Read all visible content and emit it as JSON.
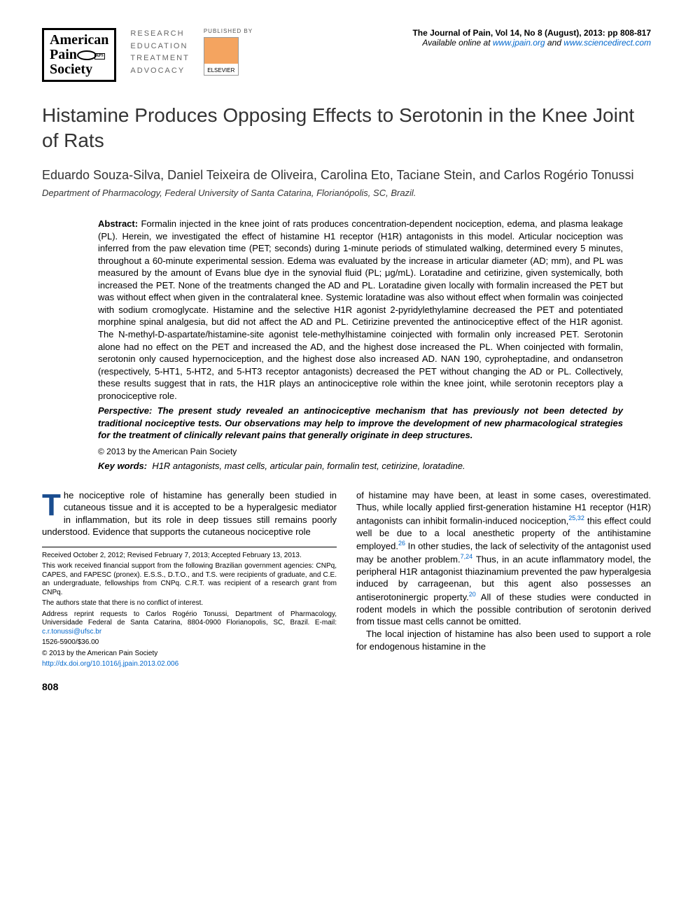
{
  "header": {
    "society_logo": {
      "line1": "American",
      "line2": "Pain",
      "line3": "Society"
    },
    "tagline": [
      "RESEARCH",
      "EDUCATION",
      "TREATMENT",
      "ADVOCACY"
    ],
    "publisher_label": "PUBLISHED BY",
    "publisher_name": "ELSEVIER",
    "journal_citation": "The Journal of Pain, Vol 14, No 8 (August), 2013: pp 808-817",
    "availability_prefix": "Available online at ",
    "link1": "www.jpain.org",
    "availability_mid": " and ",
    "link2": "www.sciencedirect.com"
  },
  "article": {
    "title": "Histamine Produces Opposing Effects to Serotonin in the Knee Joint of Rats",
    "authors": "Eduardo Souza-Silva, Daniel Teixeira de Oliveira, Carolina Eto, Taciane Stein, and Carlos Rogério Tonussi",
    "affiliation": "Department of Pharmacology, Federal University of Santa Catarina, Florianópolis, SC, Brazil."
  },
  "abstract": {
    "label": "Abstract:",
    "text": "Formalin injected in the knee joint of rats produces concentration-dependent nociception, edema, and plasma leakage (PL). Herein, we investigated the effect of histamine H1 receptor (H1R) antagonists in this model. Articular nociception was inferred from the paw elevation time (PET; seconds) during 1-minute periods of stimulated walking, determined every 5 minutes, throughout a 60-minute experimental session. Edema was evaluated by the increase in articular diameter (AD; mm), and PL was measured by the amount of Evans blue dye in the synovial fluid (PL; μg/mL). Loratadine and cetirizine, given systemically, both increased the PET. None of the treatments changed the AD and PL. Loratadine given locally with formalin increased the PET but was without effect when given in the contralateral knee. Systemic loratadine was also without effect when formalin was coinjected with sodium cromoglycate. Histamine and the selective H1R agonist 2-pyridylethylamine decreased the PET and potentiated morphine spinal analgesia, but did not affect the AD and PL. Cetirizine prevented the antinociceptive effect of the H1R agonist. The N-methyl-D-aspartate/histamine-site agonist tele-methylhistamine coinjected with formalin only increased PET. Serotonin alone had no effect on the PET and increased the AD, and the highest dose increased the PL. When coinjected with formalin, serotonin only caused hypernociception, and the highest dose also increased AD. NAN 190, cyproheptadine, and ondansetron (respectively, 5-HT1, 5-HT2, and 5-HT3 receptor antagonists) decreased the PET without changing the AD or PL. Collectively, these results suggest that in rats, the H1R plays an antinociceptive role within the knee joint, while serotonin receptors play a pronociceptive role.",
    "perspective_label": "Perspective:",
    "perspective_text": "The present study revealed an antinociceptive mechanism that has previously not been detected by traditional nociceptive tests. Our observations may help to improve the development of new pharmacological strategies for the treatment of clinically relevant pains that generally originate in deep structures.",
    "copyright": "© 2013 by the American Pain Society",
    "keywords_label": "Key words:",
    "keywords": "H1R antagonists, mast cells, articular pain, formalin test, cetirizine, loratadine."
  },
  "body": {
    "col1_dropcap": "T",
    "col1_p1": "he nociceptive role of histamine has generally been studied in cutaneous tissue and it is accepted to be a hyperalgesic mediator in inflammation, but its role in deep tissues still remains poorly understood. Evidence that supports the cutaneous nociceptive role",
    "col2_p1": "of histamine may have been, at least in some cases, overestimated. Thus, while locally applied first-generation histamine H1 receptor (H1R) antagonists can inhibit formalin-induced nociception,",
    "col2_ref1": "25,32",
    "col2_p1b": " this effect could well be due to a local anesthetic property of the antihistamine employed.",
    "col2_ref2": "26",
    "col2_p1c": " In other studies, the lack of selectivity of the antagonist used may be another problem.",
    "col2_ref3": "7,24",
    "col2_p1d": " Thus, in an acute inflammatory model, the peripheral H1R antagonist thiazinamium prevented the paw hyperalgesia induced by carrageenan, but this agent also possesses an antiserotoninergic property.",
    "col2_ref4": "20",
    "col2_p1e": " All of these studies were conducted in rodent models in which the possible contribution of serotonin derived from tissue mast cells cannot be omitted.",
    "col2_p2": "The local injection of histamine has also been used to support a role for endogenous histamine in the"
  },
  "footnotes": {
    "received": "Received October 2, 2012; Revised February 7, 2013; Accepted February 13, 2013.",
    "funding": "This work received financial support from the following Brazilian government agencies: CNPq, CAPES, and FAPESC (pronex). E.S.S., D.T.O., and T.S. were recipients of graduate, and C.E. an undergraduate, fellowships from CNPq. C.R.T. was recipient of a research grant from CNPq.",
    "conflict": "The authors state that there is no conflict of interest.",
    "reprint": "Address reprint requests to Carlos Rogério Tonussi, Department of Pharmacology, Universidade Federal de Santa Catarina, 8804-0900 Florianopolis, SC, Brazil. E-mail: ",
    "email": "c.r.tonussi@ufsc.br",
    "issn": "1526-5900/$36.00",
    "copyright": "© 2013 by the American Pain Society",
    "doi": "http://dx.doi.org/10.1016/j.jpain.2013.02.006"
  },
  "page_number": "808",
  "colors": {
    "link": "#0066cc",
    "dropcap": "#1a4d8f",
    "text": "#000000",
    "tagline": "#666666"
  },
  "typography": {
    "title_fontsize": 28,
    "authors_fontsize": 18,
    "body_fontsize": 13,
    "footnote_fontsize": 10,
    "title_fontfamily": "Arial, Helvetica, sans-serif"
  }
}
